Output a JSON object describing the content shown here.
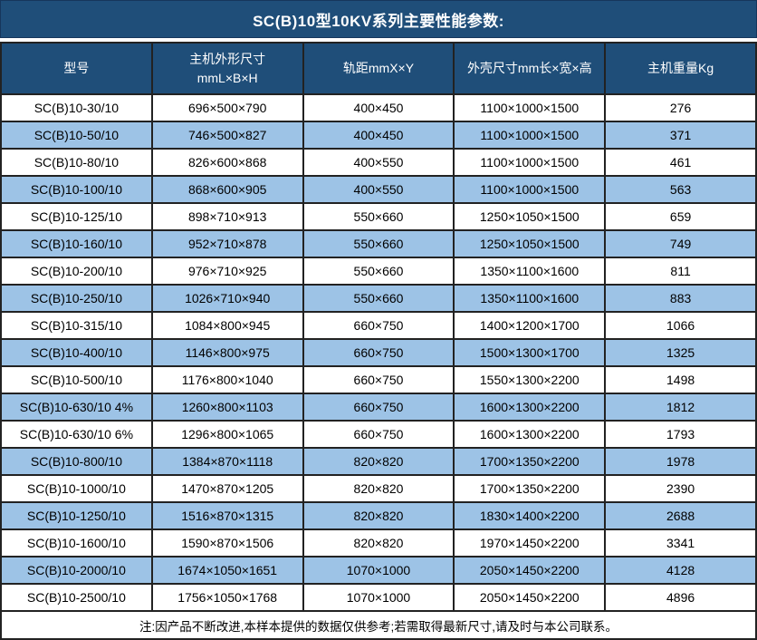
{
  "title": "SC(B)10型10KV系列主要性能参数:",
  "colors": {
    "header_bg": "#1F4E79",
    "alt_row_bg": "#9DC3E6",
    "row_bg": "#FFFFFF",
    "border": "#222222",
    "header_text": "#FFFFFF",
    "body_text": "#000000"
  },
  "table": {
    "columns": [
      {
        "label": "型号",
        "sub": ""
      },
      {
        "label": "主机外形尺寸",
        "sub": "mmL×B×H"
      },
      {
        "label": "轨距mmX×Y",
        "sub": ""
      },
      {
        "label": "外壳尺寸mm长×宽×高",
        "sub": ""
      },
      {
        "label": "主机重量Kg",
        "sub": ""
      }
    ],
    "rows": [
      [
        "SC(B)10-30/10",
        "696×500×790",
        "400×450",
        "1100×1000×1500",
        "276"
      ],
      [
        "SC(B)10-50/10",
        "746×500×827",
        "400×450",
        "1100×1000×1500",
        "371"
      ],
      [
        "SC(B)10-80/10",
        "826×600×868",
        "400×550",
        "1100×1000×1500",
        "461"
      ],
      [
        "SC(B)10-100/10",
        "868×600×905",
        "400×550",
        "1100×1000×1500",
        "563"
      ],
      [
        "SC(B)10-125/10",
        "898×710×913",
        "550×660",
        "1250×1050×1500",
        "659"
      ],
      [
        "SC(B)10-160/10",
        "952×710×878",
        "550×660",
        "1250×1050×1500",
        "749"
      ],
      [
        "SC(B)10-200/10",
        "976×710×925",
        "550×660",
        "1350×1100×1600",
        "811"
      ],
      [
        "SC(B)10-250/10",
        "1026×710×940",
        "550×660",
        "1350×1100×1600",
        "883"
      ],
      [
        "SC(B)10-315/10",
        "1084×800×945",
        "660×750",
        "1400×1200×1700",
        "1066"
      ],
      [
        "SC(B)10-400/10",
        "1146×800×975",
        "660×750",
        "1500×1300×1700",
        "1325"
      ],
      [
        "SC(B)10-500/10",
        "1176×800×1040",
        "660×750",
        "1550×1300×2200",
        "1498"
      ],
      [
        "SC(B)10-630/10 4%",
        "1260×800×1103",
        "660×750",
        "1600×1300×2200",
        "1812"
      ],
      [
        "SC(B)10-630/10 6%",
        "1296×800×1065",
        "660×750",
        "1600×1300×2200",
        "1793"
      ],
      [
        "SC(B)10-800/10",
        "1384×870×1118",
        "820×820",
        "1700×1350×2200",
        "1978"
      ],
      [
        "SC(B)10-1000/10",
        "1470×870×1205",
        "820×820",
        "1700×1350×2200",
        "2390"
      ],
      [
        "SC(B)10-1250/10",
        "1516×870×1315",
        "820×820",
        "1830×1400×2200",
        "2688"
      ],
      [
        "SC(B)10-1600/10",
        "1590×870×1506",
        "820×820",
        "1970×1450×2200",
        "3341"
      ],
      [
        "SC(B)10-2000/10",
        "1674×1050×1651",
        "1070×1000",
        "2050×1450×2200",
        "4128"
      ],
      [
        "SC(B)10-2500/10",
        "1756×1050×1768",
        "1070×1000",
        "2050×1450×2200",
        "4896"
      ]
    ]
  },
  "footer": {
    "note": "注:因产品不断改进,本样本提供的数据仅供参考;若需取得最新尺寸,请及时与本公司联系。"
  }
}
